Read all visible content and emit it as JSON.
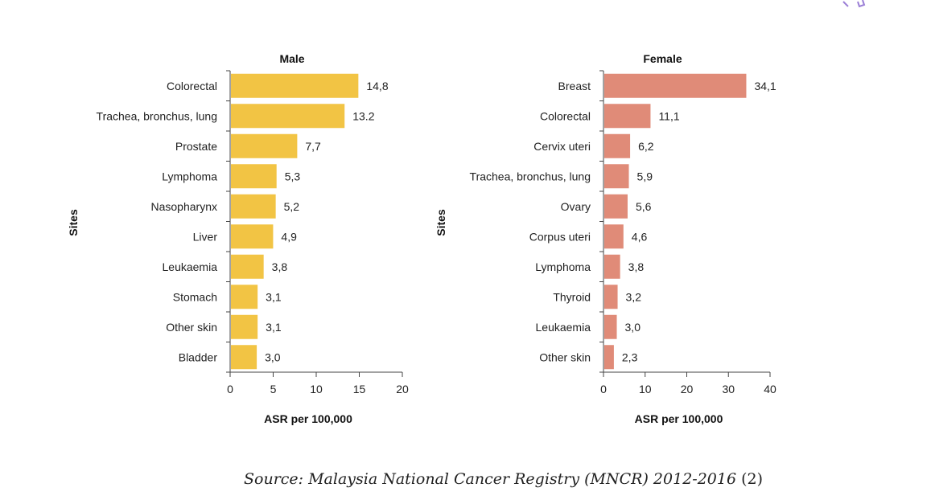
{
  "chart_data": [
    {
      "type": "bar",
      "orientation": "horizontal",
      "title": "Male",
      "xlabel": "ASR per 100,000",
      "ylabel": "Sites",
      "categories": [
        "Colorectal",
        "Trachea, bronchus, lung",
        "Prostate",
        "Lymphoma",
        "Nasopharynx",
        "Liver",
        "Leukaemia",
        "Stomach",
        "Other skin",
        "Bladder"
      ],
      "values": [
        14.8,
        13.2,
        7.7,
        5.3,
        5.2,
        4.9,
        3.8,
        3.1,
        3.1,
        3.0
      ],
      "value_labels": [
        "14,8",
        "13.2",
        "7,7",
        "5,3",
        "5,2",
        "4,9",
        "3,8",
        "3,1",
        "3,1",
        "3,0"
      ],
      "xlim": [
        0,
        20
      ],
      "xticks": [
        0,
        5,
        10,
        15,
        20
      ],
      "color": "#F2C444",
      "grid": false
    },
    {
      "type": "bar",
      "orientation": "horizontal",
      "title": "Female",
      "xlabel": "ASR per 100,000",
      "ylabel": "Sites",
      "categories": [
        "Breast",
        "Colorectal",
        "Cervix uteri",
        "Trachea, bronchus, lung",
        "Ovary",
        "Corpus uteri",
        "Lymphoma",
        "Thyroid",
        "Leukaemia",
        "Other skin"
      ],
      "values": [
        34.1,
        11.1,
        6.2,
        5.9,
        5.6,
        4.6,
        3.8,
        3.2,
        3.0,
        2.3
      ],
      "value_labels": [
        "34,1",
        "11,1",
        "6,2",
        "5,9",
        "5,6",
        "4,6",
        "3,8",
        "3,2",
        "3,0",
        "2,3"
      ],
      "xlim": [
        0,
        40
      ],
      "xticks": [
        0,
        10,
        20,
        30,
        40
      ],
      "color": "#E08B78",
      "grid": false
    }
  ],
  "source": {
    "text": "Source: Malaysia National Cancer Registry (MNCR) 2012-2016",
    "ref": "(2)"
  }
}
